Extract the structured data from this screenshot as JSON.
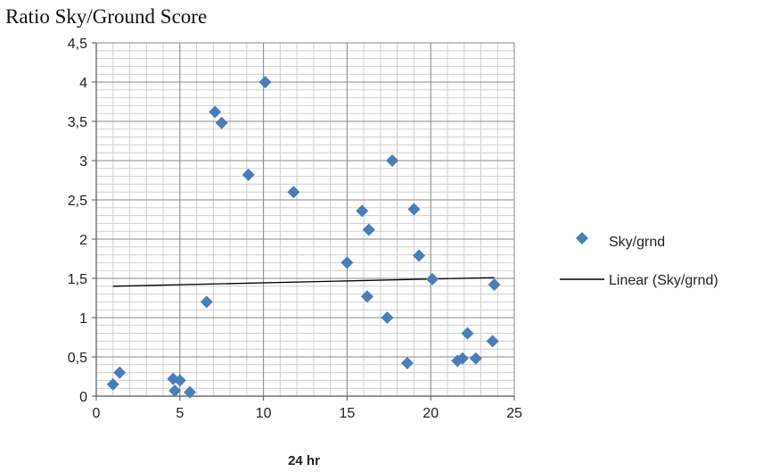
{
  "chart_data": {
    "type": "scatter",
    "title": "Ratio Sky/Ground Score",
    "xlabel": "24 hr",
    "ylabel": "",
    "xlim": [
      0,
      25
    ],
    "ylim": [
      0,
      4.5
    ],
    "x_ticks": [
      "0",
      "5",
      "10",
      "15",
      "20",
      "25"
    ],
    "y_ticks": [
      "0",
      "0,5",
      "1",
      "1,5",
      "2",
      "2,5",
      "3",
      "3,5",
      "4",
      "4,5"
    ],
    "grid": "major and minor",
    "legend_position": "right",
    "series": [
      {
        "name": "Sky/grnd",
        "marker": "diamond",
        "color": "#4a7ebb",
        "points": [
          [
            1.0,
            0.15
          ],
          [
            1.4,
            0.3
          ],
          [
            4.6,
            0.22
          ],
          [
            4.7,
            0.07
          ],
          [
            5.0,
            0.2
          ],
          [
            5.6,
            0.05
          ],
          [
            6.6,
            1.2
          ],
          [
            7.1,
            3.62
          ],
          [
            7.5,
            3.48
          ],
          [
            9.1,
            2.82
          ],
          [
            10.1,
            4.0
          ],
          [
            11.8,
            2.6
          ],
          [
            15.0,
            1.7
          ],
          [
            15.9,
            2.36
          ],
          [
            16.2,
            1.27
          ],
          [
            16.3,
            2.12
          ],
          [
            17.4,
            1.0
          ],
          [
            17.7,
            3.0
          ],
          [
            18.6,
            0.42
          ],
          [
            19.0,
            2.38
          ],
          [
            19.3,
            1.79
          ],
          [
            20.1,
            1.49
          ],
          [
            21.6,
            0.45
          ],
          [
            21.9,
            0.48
          ],
          [
            22.2,
            0.8
          ],
          [
            22.7,
            0.48
          ],
          [
            23.7,
            0.7
          ],
          [
            23.8,
            1.42
          ]
        ]
      },
      {
        "name": "Linear (Sky/grnd)",
        "type": "line",
        "color": "#000000",
        "points": [
          [
            1.0,
            1.4
          ],
          [
            23.8,
            1.51
          ]
        ]
      }
    ]
  }
}
